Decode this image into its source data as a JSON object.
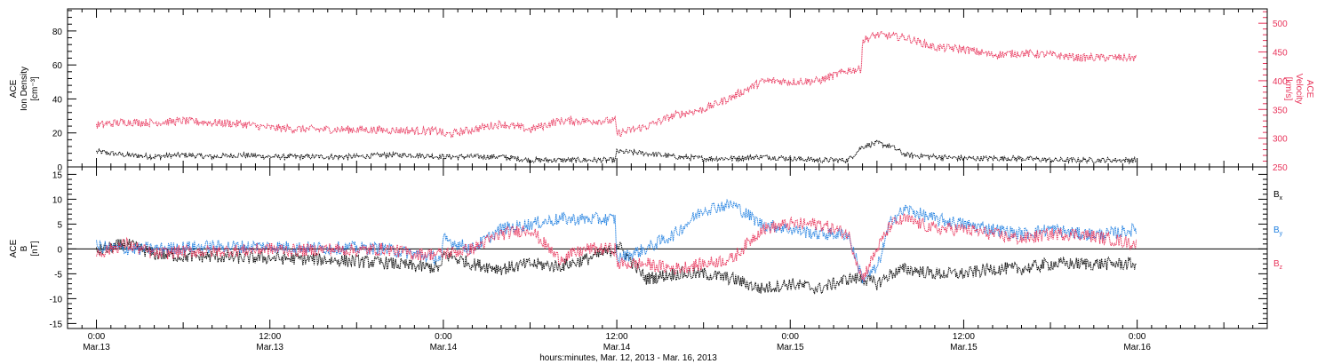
{
  "chart_data": [
    {
      "type": "scatter",
      "panel": "plasma",
      "ylabel_left": [
        "ACE",
        "Ion Density",
        "[cm⁻³]"
      ],
      "ylabel_right": [
        "ACE",
        "Velocity",
        "[km/s]"
      ],
      "ylim_left": [
        0,
        93
      ],
      "yticks_left": [
        "0",
        "20",
        "40",
        "60",
        "80"
      ],
      "ylim_right": [
        250,
        525
      ],
      "yticks_right": [
        "250",
        "300",
        "350",
        "400",
        "450",
        "500"
      ],
      "series": [
        {
          "axis": "left",
          "color": "#000000",
          "x_hours": [
            0,
            2,
            4,
            6,
            8,
            10,
            12,
            14,
            16,
            18,
            20,
            22,
            23.9,
            24,
            26,
            28,
            30,
            32,
            34,
            35.9,
            36,
            38,
            40,
            42,
            44,
            46,
            48,
            50,
            52,
            53,
            54,
            55,
            56,
            58,
            60,
            62,
            64,
            66,
            68,
            70,
            72
          ],
          "values": [
            9,
            7,
            6,
            7,
            6,
            7,
            6,
            6,
            6,
            6,
            7,
            7,
            6,
            6,
            6,
            6,
            4,
            4,
            4,
            4,
            9,
            8,
            6,
            5,
            5,
            6,
            5,
            4,
            4,
            12,
            14,
            12,
            7,
            6,
            5,
            5,
            5,
            4,
            4,
            4,
            4
          ]
        },
        {
          "axis": "right",
          "color": "#e8335a",
          "x_hours": [
            0,
            2,
            4,
            6,
            8,
            10,
            12,
            14,
            16,
            18,
            20,
            22,
            23.9,
            24,
            26,
            28,
            30,
            32,
            34,
            35.9,
            36,
            38,
            40,
            42,
            44,
            46,
            47,
            48,
            50,
            52,
            52.9,
            53,
            54,
            56,
            58,
            60,
            62,
            64,
            66,
            68,
            70,
            72
          ],
          "values": [
            323,
            328,
            327,
            330,
            327,
            325,
            318,
            316,
            315,
            315,
            314,
            313,
            312,
            305,
            315,
            325,
            315,
            330,
            330,
            330,
            308,
            320,
            340,
            350,
            372,
            398,
            400,
            398,
            400,
            418,
            420,
            470,
            480,
            475,
            458,
            455,
            445,
            448,
            445,
            440,
            440,
            440
          ]
        }
      ]
    },
    {
      "type": "scatter",
      "panel": "magnetic",
      "ylabel": [
        "ACE",
        "B",
        "[nT]"
      ],
      "ylim": [
        -16,
        16.5
      ],
      "yticks": [
        "-15",
        "-10",
        "-5",
        "0",
        "5",
        "10",
        "15"
      ],
      "zero_line": true,
      "x_hours": [
        0,
        2,
        4,
        6,
        8,
        10,
        12,
        14,
        16,
        18,
        20,
        22,
        23.9,
        24,
        26,
        28,
        30,
        32,
        34,
        35.9,
        36,
        38,
        40,
        42,
        44,
        46,
        48,
        50,
        52,
        53,
        54,
        55,
        56,
        58,
        60,
        62,
        64,
        66,
        68,
        70,
        72
      ],
      "series": [
        {
          "name": "B",
          "sub": "x",
          "color": "#000000",
          "values": [
            -0.5,
            1,
            -1,
            -1.5,
            -1.5,
            -1.8,
            -1.8,
            -2,
            -2.2,
            -2.5,
            -2.8,
            -3.5,
            -3.8,
            -1,
            -3,
            -4,
            -3,
            -3.5,
            -2,
            0,
            1,
            -6,
            -5,
            -5,
            -6,
            -8,
            -7,
            -8,
            -6,
            -6,
            -7,
            -5,
            -4,
            -5,
            -5,
            -4,
            -4,
            -3,
            -3,
            -3,
            -3
          ]
        },
        {
          "name": "B",
          "sub": "y",
          "color": "#1f7fe0",
          "values": [
            0.5,
            0,
            0,
            0.3,
            0.5,
            0.5,
            0.5,
            0.3,
            0.2,
            0.2,
            0,
            -1,
            -2,
            2,
            0,
            4,
            5,
            6,
            6,
            6,
            -2,
            0,
            3,
            8,
            9,
            5,
            4,
            3,
            3,
            -6,
            -4,
            6,
            8,
            6,
            5,
            4,
            3,
            4,
            3,
            3,
            4
          ]
        },
        {
          "name": "B",
          "sub": "z",
          "color": "#e8335a",
          "values": [
            -1,
            1,
            -1,
            -0.5,
            -0.5,
            -0.3,
            0,
            -0.3,
            0,
            -0.3,
            0,
            -1,
            -1,
            -1,
            0,
            3,
            4,
            -2,
            0,
            0,
            -3,
            -3,
            -4,
            -3,
            -2,
            4,
            5,
            5,
            3,
            -6,
            0,
            5,
            6,
            4,
            4,
            3,
            2,
            3,
            3,
            2,
            1
          ]
        }
      ]
    }
  ],
  "x_axis": {
    "range_hours": [
      -2,
      81
    ],
    "ticks": [
      {
        "hour": 0,
        "time": "0:00",
        "date": "Mar.13"
      },
      {
        "hour": 12,
        "time": "12:00",
        "date": "Mar.13"
      },
      {
        "hour": 24,
        "time": "0:00",
        "date": "Mar.14"
      },
      {
        "hour": 36,
        "time": "12:00",
        "date": "Mar.14"
      },
      {
        "hour": 48,
        "time": "0:00",
        "date": "Mar.15"
      },
      {
        "hour": 60,
        "time": "12:00",
        "date": "Mar.15"
      },
      {
        "hour": 72,
        "time": "0:00",
        "date": "Mar.16"
      }
    ],
    "label": "hours:minutes, Mar. 12, 2013 - Mar. 16, 2013"
  }
}
